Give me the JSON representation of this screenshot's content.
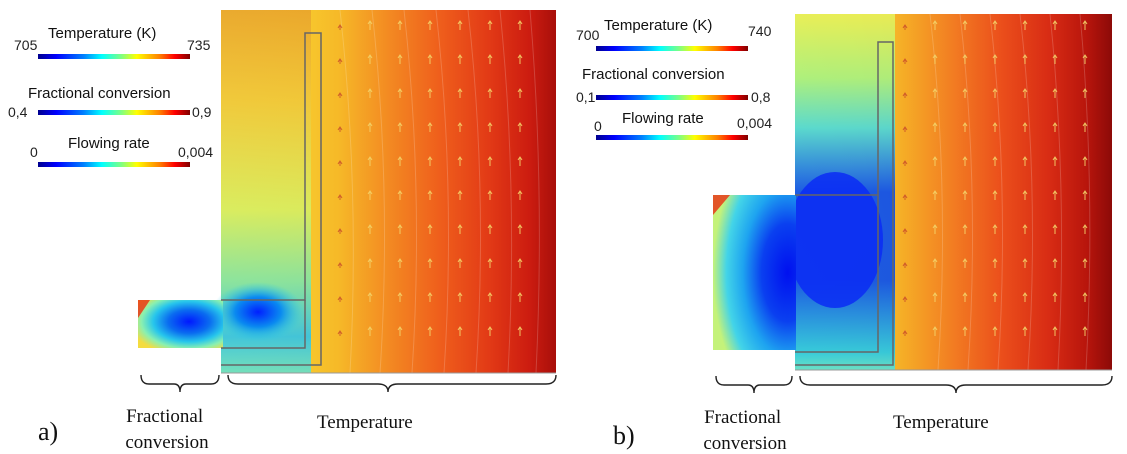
{
  "panels": [
    {
      "label": "a)",
      "legend": {
        "temperature": {
          "title": "Temperature (K)",
          "min": "705",
          "max": "735"
        },
        "conversion": {
          "title": "Fractional conversion",
          "min": "0,4",
          "max": "0,9"
        },
        "flow": {
          "title": "Flowing rate",
          "min": "0",
          "max": "0,004"
        }
      },
      "captions": {
        "conversion": "Fractional\nconversion",
        "temperature": "Temperature"
      }
    },
    {
      "label": "b)",
      "legend": {
        "temperature": {
          "title": "Temperature (K)",
          "min": "700",
          "max": "740"
        },
        "conversion": {
          "title": "Fractional conversion",
          "min": "0,1",
          "max": "0,8"
        },
        "flow": {
          "title": "Flowing rate",
          "min": "0",
          "max": "0,004"
        }
      },
      "captions": {
        "conversion": "Fractional\nconversion",
        "temperature": "Temperature"
      }
    }
  ],
  "colors": {
    "jet": [
      "#00008f",
      "#0000ff",
      "#0080ff",
      "#00ffff",
      "#80ff80",
      "#ffff00",
      "#ff8000",
      "#ff0000",
      "#800000"
    ],
    "arrow_dark": "#c0392b",
    "arrow_light": "#f3d46a",
    "outline": "#666666"
  }
}
